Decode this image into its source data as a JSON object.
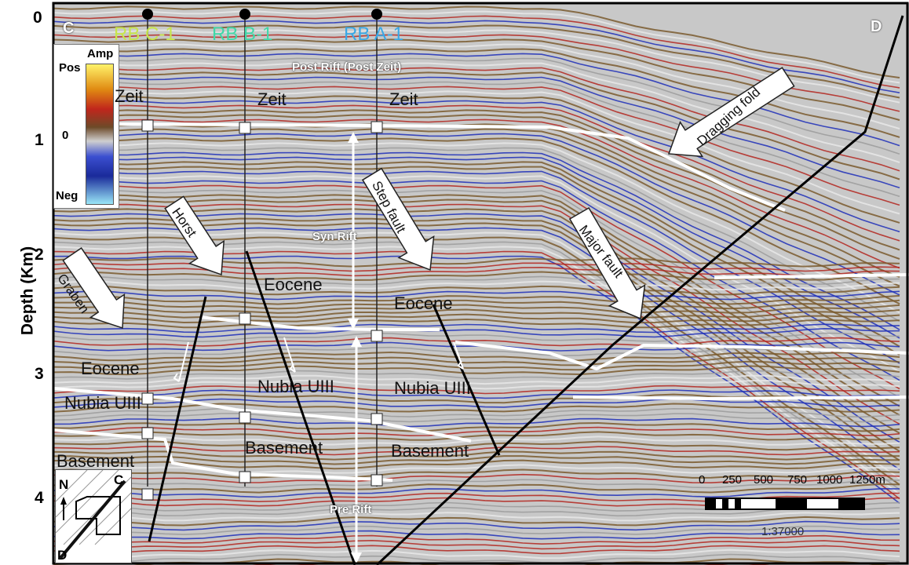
{
  "colors": {
    "red": "#b3261e",
    "blue": "#1f2fb8",
    "brown": "#7a5a2e",
    "well_c1": "#c7e64b",
    "well_b1": "#3fd9a8",
    "well_a1": "#39a8e6"
  },
  "section": {
    "corner_left": "C",
    "corner_right": "D"
  },
  "axis": {
    "label": "Depth (Km)",
    "ticks": [
      "0",
      "1",
      "2",
      "3",
      "4"
    ]
  },
  "wells": [
    {
      "name": "RB C-1",
      "color": "#c7e64b"
    },
    {
      "name": "RB B-1",
      "color": "#3fd9a8"
    },
    {
      "name": "RB A-1",
      "color": "#39a8e6"
    }
  ],
  "legend": {
    "top": "Amp",
    "pos": "Pos",
    "zero": "0",
    "neg": "Neg"
  },
  "phases": {
    "post_rift": "Post Rift (Post Zeit)",
    "syn_rift": "Syn Rift",
    "pre_rift": "Pre Rift"
  },
  "horizons": {
    "zeit_left": "Zeit",
    "zeit_mid": "Zeit",
    "zeit_right": "Zeit",
    "eocene_left": "Eocene",
    "eocene_mid": "Eocene",
    "eocene_right": "Eocene",
    "nubia_left": "Nubia UIII",
    "nubia_mid": "Nubia UIII",
    "nubia_right": "Nubia UIII",
    "basement_left": "Basement",
    "basement_mid": "Basement",
    "basement_right": "Basement"
  },
  "annotations": {
    "graben": "Graben",
    "horst": "Horst",
    "step_fault": "Step fault",
    "major_fault": "Major fault",
    "dragging_fold": "Dragging fold"
  },
  "scalebar": {
    "ticks": [
      "0",
      "250",
      "500",
      "750",
      "1000",
      "1250m"
    ],
    "ratio": "1:37000"
  },
  "inset": {
    "north": "N",
    "c": "C",
    "d": "D"
  }
}
